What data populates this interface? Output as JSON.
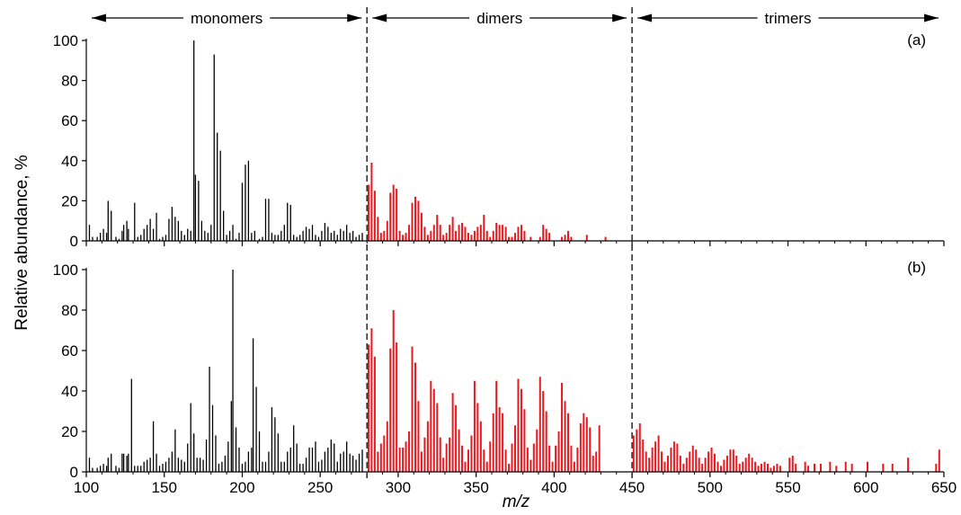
{
  "figure": {
    "ylabel": "Relative abundance, %",
    "xlabel": "m/z",
    "regions": [
      {
        "label": "monomers",
        "from": 100,
        "to": 280
      },
      {
        "label": "dimers",
        "from": 280,
        "to": 450
      },
      {
        "label": "trimers",
        "from": 450,
        "to": 650
      }
    ],
    "dividers": [
      280,
      450
    ],
    "colors": {
      "monomer": "#000000",
      "oligomer": "#e8191f",
      "divider": "#333333"
    },
    "split_mz": 280
  },
  "chart_data": [
    {
      "type": "bar",
      "panel_label": "(a)",
      "xlim": [
        100,
        650
      ],
      "ylim": [
        0,
        100
      ],
      "x_ticks": [],
      "y_ticks": [
        0,
        20,
        40,
        60,
        80,
        100
      ],
      "grid": false,
      "peaks": [
        [
          102,
          8
        ],
        [
          104,
          2
        ],
        [
          107,
          2
        ],
        [
          109,
          4
        ],
        [
          111,
          6
        ],
        [
          113,
          4
        ],
        [
          114,
          20
        ],
        [
          116,
          15
        ],
        [
          119,
          2
        ],
        [
          121,
          1
        ],
        [
          123,
          5
        ],
        [
          124,
          8
        ],
        [
          126,
          10
        ],
        [
          127,
          6
        ],
        [
          131,
          19
        ],
        [
          133,
          2
        ],
        [
          135,
          3
        ],
        [
          137,
          6
        ],
        [
          139,
          8
        ],
        [
          141,
          11
        ],
        [
          143,
          6
        ],
        [
          145,
          14
        ],
        [
          147,
          1
        ],
        [
          149,
          2
        ],
        [
          151,
          3
        ],
        [
          153,
          11
        ],
        [
          155,
          17
        ],
        [
          157,
          12
        ],
        [
          159,
          10
        ],
        [
          161,
          5
        ],
        [
          163,
          3
        ],
        [
          165,
          6
        ],
        [
          167,
          5
        ],
        [
          169,
          100
        ],
        [
          170,
          33
        ],
        [
          172,
          30
        ],
        [
          174,
          10
        ],
        [
          176,
          5
        ],
        [
          178,
          4
        ],
        [
          180,
          8
        ],
        [
          182,
          93
        ],
        [
          184,
          54
        ],
        [
          186,
          45
        ],
        [
          188,
          15
        ],
        [
          190,
          3
        ],
        [
          192,
          5
        ],
        [
          194,
          8
        ],
        [
          196,
          1
        ],
        [
          198,
          4
        ],
        [
          200,
          29
        ],
        [
          202,
          38
        ],
        [
          204,
          40
        ],
        [
          206,
          4
        ],
        [
          208,
          5
        ],
        [
          211,
          1
        ],
        [
          213,
          2
        ],
        [
          215,
          21
        ],
        [
          217,
          21
        ],
        [
          219,
          4
        ],
        [
          221,
          3
        ],
        [
          223,
          3
        ],
        [
          225,
          5
        ],
        [
          227,
          8
        ],
        [
          229,
          19
        ],
        [
          231,
          18
        ],
        [
          233,
          3
        ],
        [
          235,
          2
        ],
        [
          237,
          3
        ],
        [
          239,
          5
        ],
        [
          241,
          7
        ],
        [
          243,
          6
        ],
        [
          245,
          8
        ],
        [
          247,
          3
        ],
        [
          249,
          2
        ],
        [
          251,
          5
        ],
        [
          253,
          9
        ],
        [
          255,
          7
        ],
        [
          257,
          4
        ],
        [
          259,
          5
        ],
        [
          261,
          3
        ],
        [
          263,
          6
        ],
        [
          265,
          5
        ],
        [
          267,
          8
        ],
        [
          269,
          4
        ],
        [
          271,
          5
        ],
        [
          273,
          2
        ],
        [
          275,
          3
        ],
        [
          277,
          4
        ],
        [
          281,
          28
        ],
        [
          283,
          39
        ],
        [
          285,
          25
        ],
        [
          287,
          12
        ],
        [
          289,
          4
        ],
        [
          291,
          5
        ],
        [
          293,
          10
        ],
        [
          295,
          24
        ],
        [
          297,
          28
        ],
        [
          299,
          26
        ],
        [
          301,
          5
        ],
        [
          303,
          3
        ],
        [
          305,
          4
        ],
        [
          307,
          8
        ],
        [
          309,
          19
        ],
        [
          311,
          22
        ],
        [
          313,
          20
        ],
        [
          315,
          14
        ],
        [
          317,
          7
        ],
        [
          319,
          3
        ],
        [
          321,
          5
        ],
        [
          323,
          8
        ],
        [
          325,
          13
        ],
        [
          327,
          8
        ],
        [
          329,
          3
        ],
        [
          331,
          4
        ],
        [
          333,
          8
        ],
        [
          335,
          12
        ],
        [
          337,
          5
        ],
        [
          339,
          8
        ],
        [
          341,
          9
        ],
        [
          343,
          7
        ],
        [
          345,
          4
        ],
        [
          347,
          3
        ],
        [
          349,
          5
        ],
        [
          351,
          7
        ],
        [
          353,
          8
        ],
        [
          355,
          13
        ],
        [
          357,
          5
        ],
        [
          359,
          2
        ],
        [
          361,
          5
        ],
        [
          363,
          9
        ],
        [
          365,
          8
        ],
        [
          367,
          8
        ],
        [
          369,
          7
        ],
        [
          371,
          2
        ],
        [
          373,
          2
        ],
        [
          375,
          4
        ],
        [
          377,
          7
        ],
        [
          379,
          8
        ],
        [
          381,
          5
        ],
        [
          385,
          2
        ],
        [
          391,
          2
        ],
        [
          393,
          8
        ],
        [
          395,
          6
        ],
        [
          397,
          4
        ],
        [
          405,
          2
        ],
        [
          407,
          3
        ],
        [
          409,
          5
        ],
        [
          411,
          2
        ],
        [
          421,
          3
        ],
        [
          433,
          2
        ]
      ]
    },
    {
      "type": "bar",
      "panel_label": "(b)",
      "xlim": [
        100,
        650
      ],
      "ylim": [
        0,
        100
      ],
      "x_ticks": [
        100,
        150,
        200,
        250,
        300,
        350,
        400,
        450,
        500,
        550,
        600,
        650
      ],
      "y_ticks": [
        0,
        20,
        40,
        60,
        80,
        100
      ],
      "grid": false,
      "peaks": [
        [
          102,
          7
        ],
        [
          104,
          2
        ],
        [
          107,
          2
        ],
        [
          109,
          3
        ],
        [
          111,
          4
        ],
        [
          113,
          3
        ],
        [
          114,
          7
        ],
        [
          116,
          9
        ],
        [
          119,
          3
        ],
        [
          121,
          2
        ],
        [
          123,
          9
        ],
        [
          124,
          9
        ],
        [
          126,
          8
        ],
        [
          127,
          9
        ],
        [
          129,
          46
        ],
        [
          131,
          3
        ],
        [
          133,
          3
        ],
        [
          135,
          3
        ],
        [
          137,
          5
        ],
        [
          139,
          6
        ],
        [
          141,
          7
        ],
        [
          143,
          25
        ],
        [
          145,
          9
        ],
        [
          147,
          3
        ],
        [
          149,
          4
        ],
        [
          151,
          5
        ],
        [
          153,
          7
        ],
        [
          155,
          10
        ],
        [
          157,
          21
        ],
        [
          159,
          7
        ],
        [
          161,
          6
        ],
        [
          163,
          5
        ],
        [
          165,
          14
        ],
        [
          167,
          34
        ],
        [
          169,
          19
        ],
        [
          171,
          7
        ],
        [
          173,
          7
        ],
        [
          175,
          6
        ],
        [
          177,
          16
        ],
        [
          179,
          52
        ],
        [
          181,
          33
        ],
        [
          183,
          18
        ],
        [
          185,
          4
        ],
        [
          187,
          5
        ],
        [
          189,
          8
        ],
        [
          191,
          15
        ],
        [
          193,
          35
        ],
        [
          194,
          100
        ],
        [
          196,
          22
        ],
        [
          198,
          12
        ],
        [
          200,
          4
        ],
        [
          202,
          5
        ],
        [
          204,
          10
        ],
        [
          206,
          12
        ],
        [
          207,
          66
        ],
        [
          209,
          42
        ],
        [
          211,
          20
        ],
        [
          213,
          5
        ],
        [
          215,
          5
        ],
        [
          217,
          10
        ],
        [
          219,
          32
        ],
        [
          221,
          27
        ],
        [
          223,
          19
        ],
        [
          225,
          5
        ],
        [
          227,
          5
        ],
        [
          229,
          10
        ],
        [
          231,
          12
        ],
        [
          233,
          23
        ],
        [
          235,
          14
        ],
        [
          237,
          4
        ],
        [
          239,
          4
        ],
        [
          241,
          7
        ],
        [
          243,
          12
        ],
        [
          245,
          12
        ],
        [
          247,
          15
        ],
        [
          249,
          5
        ],
        [
          251,
          6
        ],
        [
          253,
          10
        ],
        [
          255,
          12
        ],
        [
          257,
          16
        ],
        [
          259,
          14
        ],
        [
          261,
          5
        ],
        [
          263,
          9
        ],
        [
          265,
          10
        ],
        [
          267,
          15
        ],
        [
          269,
          9
        ],
        [
          271,
          8
        ],
        [
          273,
          6
        ],
        [
          275,
          9
        ],
        [
          277,
          11
        ],
        [
          281,
          63
        ],
        [
          283,
          71
        ],
        [
          285,
          57
        ],
        [
          287,
          10
        ],
        [
          289,
          14
        ],
        [
          291,
          18
        ],
        [
          293,
          25
        ],
        [
          295,
          61
        ],
        [
          297,
          80
        ],
        [
          299,
          64
        ],
        [
          301,
          12
        ],
        [
          303,
          12
        ],
        [
          305,
          15
        ],
        [
          307,
          20
        ],
        [
          309,
          62
        ],
        [
          311,
          54
        ],
        [
          313,
          35
        ],
        [
          315,
          10
        ],
        [
          317,
          17
        ],
        [
          319,
          25
        ],
        [
          321,
          45
        ],
        [
          323,
          41
        ],
        [
          325,
          34
        ],
        [
          327,
          17
        ],
        [
          329,
          7
        ],
        [
          331,
          14
        ],
        [
          333,
          17
        ],
        [
          335,
          39
        ],
        [
          337,
          33
        ],
        [
          339,
          21
        ],
        [
          341,
          13
        ],
        [
          343,
          5
        ],
        [
          345,
          11
        ],
        [
          347,
          18
        ],
        [
          349,
          45
        ],
        [
          351,
          34
        ],
        [
          353,
          25
        ],
        [
          355,
          11
        ],
        [
          357,
          5
        ],
        [
          359,
          15
        ],
        [
          361,
          29
        ],
        [
          363,
          45
        ],
        [
          365,
          32
        ],
        [
          367,
          29
        ],
        [
          369,
          11
        ],
        [
          371,
          4
        ],
        [
          373,
          14
        ],
        [
          375,
          23
        ],
        [
          377,
          46
        ],
        [
          379,
          41
        ],
        [
          381,
          31
        ],
        [
          383,
          12
        ],
        [
          385,
          6
        ],
        [
          387,
          14
        ],
        [
          389,
          21
        ],
        [
          391,
          47
        ],
        [
          393,
          40
        ],
        [
          395,
          30
        ],
        [
          397,
          13
        ],
        [
          399,
          5
        ],
        [
          401,
          13
        ],
        [
          403,
          20
        ],
        [
          405,
          44
        ],
        [
          407,
          35
        ],
        [
          409,
          29
        ],
        [
          411,
          13
        ],
        [
          413,
          5
        ],
        [
          415,
          12
        ],
        [
          417,
          24
        ],
        [
          419,
          29
        ],
        [
          421,
          27
        ],
        [
          423,
          22
        ],
        [
          425,
          8
        ],
        [
          427,
          10
        ],
        [
          429,
          23
        ],
        [
          451,
          18
        ],
        [
          453,
          21
        ],
        [
          455,
          24
        ],
        [
          457,
          16
        ],
        [
          459,
          10
        ],
        [
          461,
          7
        ],
        [
          463,
          12
        ],
        [
          465,
          15
        ],
        [
          467,
          18
        ],
        [
          469,
          10
        ],
        [
          471,
          5
        ],
        [
          473,
          8
        ],
        [
          475,
          12
        ],
        [
          477,
          15
        ],
        [
          479,
          14
        ],
        [
          481,
          8
        ],
        [
          483,
          4
        ],
        [
          485,
          7
        ],
        [
          487,
          10
        ],
        [
          489,
          13
        ],
        [
          491,
          11
        ],
        [
          493,
          7
        ],
        [
          495,
          4
        ],
        [
          497,
          7
        ],
        [
          499,
          10
        ],
        [
          501,
          12
        ],
        [
          503,
          9
        ],
        [
          505,
          5
        ],
        [
          507,
          3
        ],
        [
          509,
          6
        ],
        [
          511,
          8
        ],
        [
          513,
          11
        ],
        [
          515,
          11
        ],
        [
          517,
          8
        ],
        [
          519,
          4
        ],
        [
          521,
          5
        ],
        [
          523,
          7
        ],
        [
          525,
          9
        ],
        [
          527,
          7
        ],
        [
          529,
          5
        ],
        [
          531,
          3
        ],
        [
          533,
          4
        ],
        [
          535,
          5
        ],
        [
          537,
          4
        ],
        [
          539,
          2
        ],
        [
          541,
          3
        ],
        [
          543,
          4
        ],
        [
          545,
          3
        ],
        [
          551,
          7
        ],
        [
          553,
          8
        ],
        [
          555,
          4
        ],
        [
          561,
          5
        ],
        [
          563,
          3
        ],
        [
          567,
          4
        ],
        [
          571,
          4
        ],
        [
          577,
          5
        ],
        [
          581,
          3
        ],
        [
          587,
          5
        ],
        [
          591,
          4
        ],
        [
          601,
          5
        ],
        [
          611,
          4
        ],
        [
          617,
          4
        ],
        [
          627,
          7
        ],
        [
          645,
          4
        ],
        [
          647,
          11
        ]
      ]
    }
  ]
}
